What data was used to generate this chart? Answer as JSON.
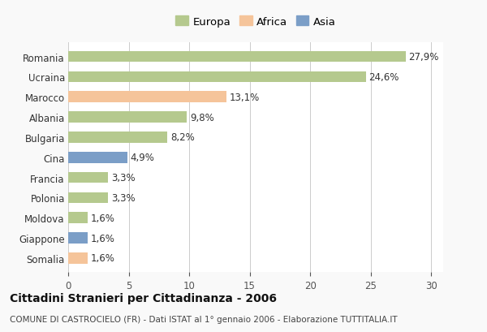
{
  "categories": [
    "Romania",
    "Ucraina",
    "Marocco",
    "Albania",
    "Bulgaria",
    "Cina",
    "Francia",
    "Polonia",
    "Moldova",
    "Giappone",
    "Somalia"
  ],
  "values": [
    27.9,
    24.6,
    13.1,
    9.8,
    8.2,
    4.9,
    3.3,
    3.3,
    1.6,
    1.6,
    1.6
  ],
  "labels": [
    "27,9%",
    "24,6%",
    "13,1%",
    "9,8%",
    "8,2%",
    "4,9%",
    "3,3%",
    "3,3%",
    "1,6%",
    "1,6%",
    "1,6%"
  ],
  "colors": [
    "#b5c98e",
    "#b5c98e",
    "#f5c49a",
    "#b5c98e",
    "#b5c98e",
    "#7b9ec7",
    "#b5c98e",
    "#b5c98e",
    "#b5c98e",
    "#7b9ec7",
    "#f5c49a"
  ],
  "legend_labels": [
    "Europa",
    "Africa",
    "Asia"
  ],
  "legend_colors": [
    "#b5c98e",
    "#f5c49a",
    "#7b9ec7"
  ],
  "title": "Cittadini Stranieri per Cittadinanza - 2006",
  "subtitle": "COMUNE DI CASTROCIELO (FR) - Dati ISTAT al 1° gennaio 2006 - Elaborazione TUTTITALIA.IT",
  "xlim": [
    0,
    31
  ],
  "xticks": [
    0,
    5,
    10,
    15,
    20,
    25,
    30
  ],
  "background_color": "#f9f9f9",
  "bar_background": "#ffffff",
  "bar_height": 0.55,
  "label_fontsize": 8.5,
  "ytick_fontsize": 8.5,
  "xtick_fontsize": 8.5,
  "legend_fontsize": 9.5,
  "title_fontsize": 10,
  "subtitle_fontsize": 7.5
}
